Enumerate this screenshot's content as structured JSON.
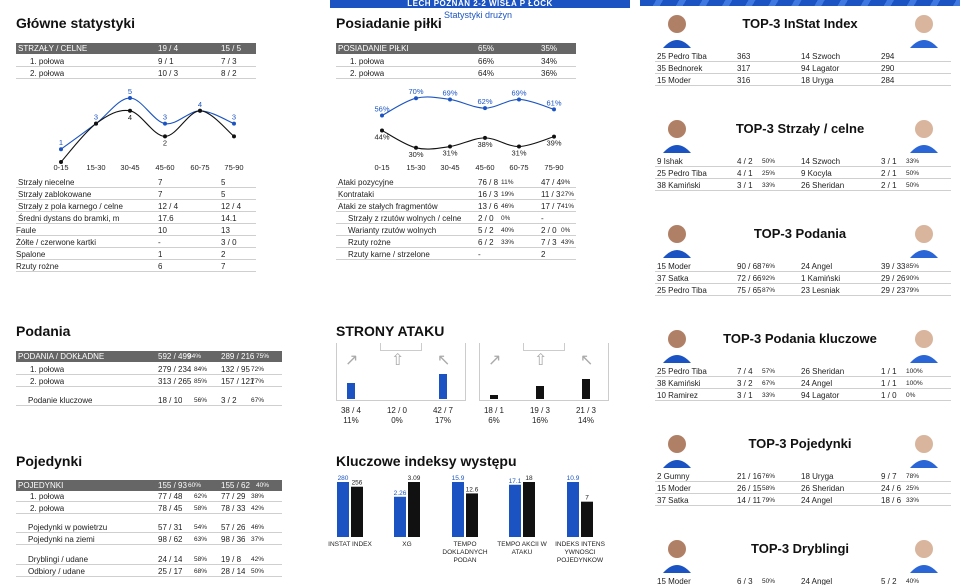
{
  "banner": "LECH POZNAŃ 2-2 WISŁA P ŁOCK",
  "subtitle": "Statystyki drużyn",
  "colors": {
    "blue": "#1b54c2",
    "black": "#111111",
    "header": "#666666"
  },
  "main": {
    "title": "Główne statystyki",
    "header": [
      "STRZAŁY / CELNE",
      "19 / 4",
      "15 / 5"
    ],
    "halves": [
      [
        "1. połowa",
        "9 / 1",
        "7 / 3"
      ],
      [
        "2. połowa",
        "10 / 3",
        "8 / 2"
      ]
    ],
    "rows": [
      [
        "Strzały niecelne",
        "7",
        "5"
      ],
      [
        "Strzały zablokowane",
        "7",
        "5"
      ],
      [
        "Strzały z pola karnego / celne",
        "12 / 4",
        "12 / 4"
      ],
      [
        "Średni dystans do bramki, m",
        "17.6",
        "14.1"
      ],
      [
        "Faule",
        "10",
        "13"
      ],
      [
        "Żółte / czerwone kartki",
        "-",
        "3 / 0"
      ],
      [
        "Spalone",
        "1",
        "2"
      ],
      [
        "Rzuty rożne",
        "6",
        "7"
      ]
    ]
  },
  "chart_data": [
    {
      "type": "line",
      "categories": [
        "0-15",
        "15-30",
        "30-45",
        "45-60",
        "60-75",
        "75-90"
      ],
      "series": [
        {
          "values": [
            1,
            3,
            5,
            3,
            4,
            3
          ],
          "color": "#1b54c2"
        },
        {
          "values": [
            0,
            3,
            4,
            2,
            4,
            2
          ],
          "color": "#111111"
        }
      ],
      "labels": [
        [
          "1",
          "3",
          "5",
          "3",
          "4",
          "3"
        ],
        [
          "",
          "",
          "4",
          "2",
          "",
          ""
        ]
      ]
    },
    {
      "type": "line",
      "categories": [
        "0-15",
        "15-30",
        "30-45",
        "45-60",
        "60-75",
        "75-90"
      ],
      "series": [
        {
          "values": [
            56,
            70,
            69,
            62,
            69,
            61
          ],
          "color": "#1b54c2"
        },
        {
          "values": [
            44,
            30,
            31,
            38,
            31,
            39
          ],
          "color": "#111111"
        }
      ],
      "labels": [
        [
          "56%",
          "70%",
          "69%",
          "62%",
          "69%",
          "61%"
        ],
        [
          "44%",
          "30%",
          "31%",
          "38%",
          "31%",
          "39%"
        ]
      ]
    },
    {
      "type": "bar",
      "categories": [
        "INSTAT INDEX",
        "XG",
        "TEMPO DOKLADNYCH PODAN",
        "TEMPO AKCII W ATAKU",
        "INDEKS INTENS YWNOSCI POJEDYNKOW"
      ],
      "series": [
        {
          "values": [
            280,
            2.26,
            15.9,
            17.1,
            10.9
          ],
          "color": "#1b54c2"
        },
        {
          "values": [
            256,
            3.09,
            12.6,
            18,
            7
          ],
          "color": "#111111"
        }
      ],
      "labels": [
        [
          "280",
          "2.26",
          "15.9",
          "17.1",
          "10.9"
        ],
        [
          "256",
          "3.09",
          "12.6",
          "18",
          "7"
        ]
      ]
    }
  ],
  "possession": {
    "title": "Posiadanie piłki",
    "header": [
      "POSIADANIE PIŁKI",
      "65%",
      "35%"
    ],
    "halves": [
      [
        "1. połowa",
        "66%",
        "34%"
      ],
      [
        "2. połowa",
        "64%",
        "36%"
      ]
    ],
    "rows": [
      [
        "Ataki pozycyjne",
        "76 / 8",
        "11%",
        "47 / 4",
        "9%"
      ],
      [
        "Kontrataki",
        "16 / 3",
        "19%",
        "11 / 3",
        "27%"
      ],
      [
        "Ataki ze stałych fragmentów",
        "13 / 6",
        "46%",
        "17 / 7",
        "41%"
      ],
      [
        "Strzały z rzutów wolnych / celne",
        "2 / 0",
        "0%",
        "-",
        ""
      ],
      [
        "Warianty rzutów wolnych",
        "5 / 2",
        "40%",
        "2 / 0",
        "0%"
      ],
      [
        "Rzuty rożne",
        "6 / 2",
        "33%",
        "7 / 3",
        "43%"
      ],
      [
        "Rzuty karne / strzelone",
        "-",
        "",
        "2",
        ""
      ]
    ]
  },
  "passes": {
    "title": "Podania",
    "header": [
      "PODANIA / DOKŁADNE",
      "592 / 499",
      "84%",
      "289 / 216",
      "75%"
    ],
    "rows": [
      [
        "1. połowa",
        "279 / 234",
        "84%",
        "132 / 95",
        "72%"
      ],
      [
        "2. połowa",
        "313 / 265",
        "85%",
        "157 / 121",
        "77%"
      ],
      [
        "Podanie kluczowe",
        "18 / 10",
        "56%",
        "3 / 2",
        "67%"
      ]
    ]
  },
  "attack": {
    "title": "STRONY ATAKU",
    "left": [
      {
        "v": "38 / 4",
        "p": "11%",
        "h": 0.45
      },
      {
        "v": "12 / 0",
        "p": "0%",
        "h": 0
      },
      {
        "v": "42 / 7",
        "p": "17%",
        "h": 0.7
      }
    ],
    "right": [
      {
        "v": "18 / 1",
        "p": "6%",
        "h": 0.12
      },
      {
        "v": "19 / 3",
        "p": "16%",
        "h": 0.35
      },
      {
        "v": "21 / 3",
        "p": "14%",
        "h": 0.55
      }
    ]
  },
  "duels": {
    "title": "Pojedynki",
    "header": [
      "POJEDYNKI",
      "155 / 93",
      "60%",
      "155 / 62",
      "40%"
    ],
    "rows": [
      [
        "1. połowa",
        "77 / 48",
        "62%",
        "77 / 29",
        "38%"
      ],
      [
        "2. połowa",
        "78 / 45",
        "58%",
        "78 / 33",
        "42%"
      ],
      [
        "Pojedynki w powietrzu",
        "57 / 31",
        "54%",
        "57 / 26",
        "46%"
      ],
      [
        "Pojedynki na ziemi",
        "98 / 62",
        "63%",
        "98 / 36",
        "37%"
      ],
      [
        "Dryblingi / udane",
        "24 / 14",
        "58%",
        "19 / 8",
        "42%"
      ],
      [
        "Odbiory / udane",
        "25 / 17",
        "68%",
        "28 / 14",
        "50%"
      ]
    ]
  },
  "indices": {
    "title": "Kluczowe indeksy występu"
  },
  "tops": [
    {
      "title": "TOP-3 InStat Index",
      "rows": [
        [
          "25 Pedro Tiba",
          "363",
          "",
          "14 Szwoch",
          "294",
          ""
        ],
        [
          "35 Bednorek",
          "317",
          "",
          "94 Lagator",
          "290",
          ""
        ],
        [
          "15 Moder",
          "316",
          "",
          "18 Uryga",
          "284",
          ""
        ]
      ]
    },
    {
      "title": "TOP-3 Strzały / celne",
      "rows": [
        [
          "9  Ishak",
          "4 / 2",
          "50%",
          "14 Szwoch",
          "3 / 1",
          "33%"
        ],
        [
          "25 Pedro Tiba",
          "4 / 1",
          "25%",
          "9  Kocyla",
          "2 / 1",
          "50%"
        ],
        [
          "38 Kamiński",
          "3 / 1",
          "33%",
          "26 Sheridan",
          "2 / 1",
          "50%"
        ]
      ]
    },
    {
      "title": "TOP-3 Podania",
      "rows": [
        [
          "15 Moder",
          "90 / 68",
          "76%",
          "24 Angel",
          "39 / 33",
          "85%"
        ],
        [
          "37 Satka",
          "72 / 66",
          "92%",
          "1  Kamiński",
          "29 / 26",
          "90%"
        ],
        [
          "25 Pedro Tiba",
          "75 / 65",
          "87%",
          "23 Lesniak",
          "29 / 23",
          "79%"
        ]
      ]
    },
    {
      "title": "TOP-3 Podania kluczowe",
      "rows": [
        [
          "25 Pedro Tiba",
          "7 / 4",
          "57%",
          "26 Sheridan",
          "1 / 1",
          "100%"
        ],
        [
          "38 Kamiński",
          "3 / 2",
          "67%",
          "24 Angel",
          "1 / 1",
          "100%"
        ],
        [
          "10 Ramirez",
          "3 / 1",
          "33%",
          "94 Lagator",
          "1 / 0",
          "0%"
        ]
      ]
    },
    {
      "title": "TOP-3 Pojedynki",
      "rows": [
        [
          "2  Gumny",
          "21 / 16",
          "76%",
          "18 Uryga",
          "9 / 7",
          "78%"
        ],
        [
          "15 Moder",
          "26 / 15",
          "58%",
          "26 Sheridan",
          "24 / 6",
          "25%"
        ],
        [
          "37 Satka",
          "14 / 11",
          "79%",
          "24 Angel",
          "18 / 6",
          "33%"
        ]
      ]
    },
    {
      "title": "TOP-3 Dryblingi",
      "rows": [
        [
          "15 Moder",
          "6 / 3",
          "50%",
          "24 Angel",
          "5 / 2",
          "40%"
        ]
      ]
    }
  ]
}
